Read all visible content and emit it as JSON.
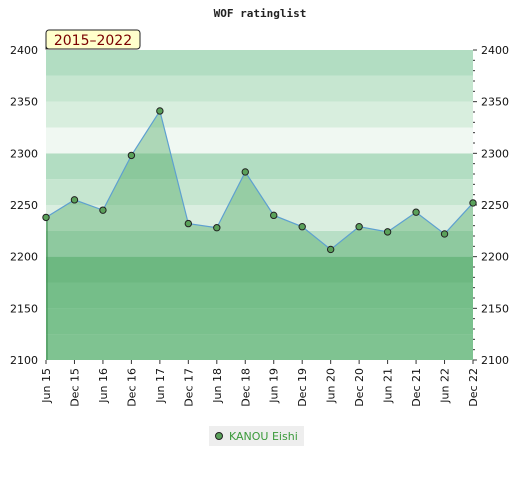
{
  "chart_data": {
    "type": "area",
    "title": "WOF ratinglist",
    "range_label": "2015–2022",
    "x": [
      "Jun 15",
      "Dec 15",
      "Jun 16",
      "Dec 16",
      "Jun 17",
      "Dec 17",
      "Jun 18",
      "Dec 18",
      "Jun 19",
      "Dec 19",
      "Jun 20",
      "Dec 20",
      "Jun 21",
      "Dec 21",
      "Jun 22",
      "Dec 22"
    ],
    "ylim": [
      2100,
      2400
    ],
    "yticks": [
      2100,
      2150,
      2200,
      2250,
      2300,
      2350,
      2400
    ],
    "series": [
      {
        "name": "KANOU Eishi",
        "values": [
          2238,
          2255,
          2245,
          2298,
          2341,
          2232,
          2228,
          2282,
          2240,
          2229,
          2207,
          2229,
          2224,
          2243,
          2222,
          2252
        ],
        "color": "#5aa15a"
      }
    ],
    "legend": "bottom",
    "grid": true,
    "colors": {
      "band_dark": "#7cc090",
      "band_mid": "#b2ddc2",
      "band_light": "#f0f8f2",
      "line": "#5ea0d0"
    }
  }
}
